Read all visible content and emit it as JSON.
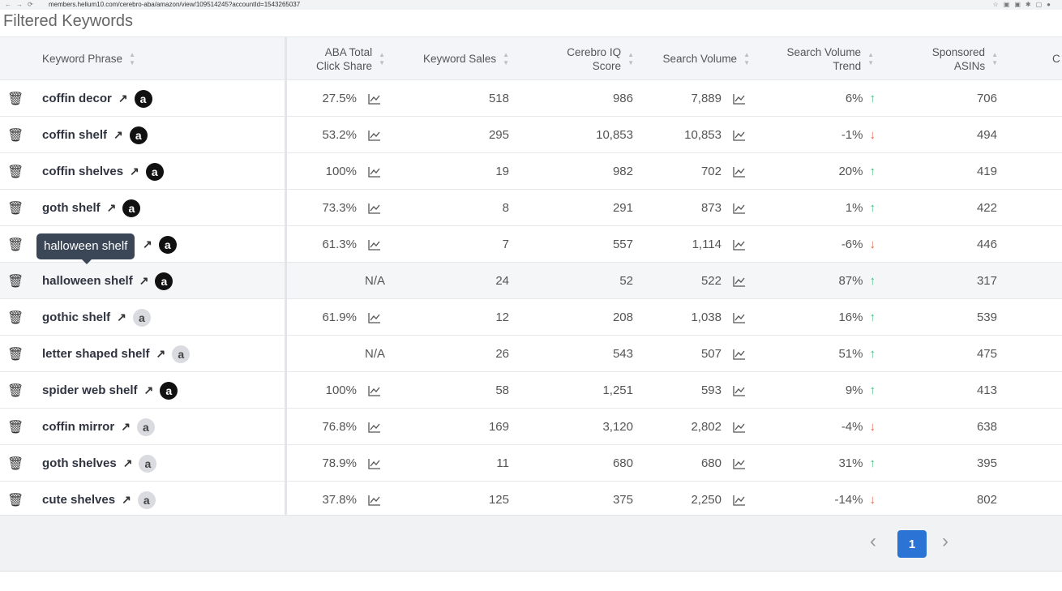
{
  "browser": {
    "url": "members.helium10.com/cerebro-aba/amazon/view/109514245?accountId=1543265037"
  },
  "page_title": "Filtered Keywords",
  "columns": {
    "keyword": "Keyword Phrase",
    "aba1": "ABA Total",
    "aba2": "Click Share",
    "sales": "Keyword Sales",
    "iq1": "Cerebro IQ",
    "iq2": "Score",
    "sv": "Search Volume",
    "svt1": "Search Volume",
    "svt2": "Trend",
    "sp1": "Sponsored",
    "sp2": "ASINs",
    "next": "C"
  },
  "rows": [
    {
      "keyword": "coffin decor",
      "amazon": "dark",
      "aba": "27.5%",
      "sales": "518",
      "iq": "986",
      "sv": "7,889",
      "trend": "6%",
      "dir": "up",
      "asins": "706"
    },
    {
      "keyword": "coffin shelf",
      "amazon": "dark",
      "aba": "53.2%",
      "sales": "295",
      "iq": "10,853",
      "sv": "10,853",
      "trend": "-1%",
      "dir": "down",
      "asins": "494"
    },
    {
      "keyword": "coffin shelves",
      "amazon": "dark",
      "aba": "100%",
      "sales": "19",
      "iq": "982",
      "sv": "702",
      "trend": "20%",
      "dir": "up",
      "asins": "419"
    },
    {
      "keyword": "goth shelf",
      "amazon": "dark",
      "aba": "73.3%",
      "sales": "8",
      "iq": "291",
      "sv": "873",
      "trend": "1%",
      "dir": "up",
      "asins": "422"
    },
    {
      "keyword": "",
      "amazon": "dark",
      "aba": "61.3%",
      "sales": "7",
      "iq": "557",
      "sv": "1,114",
      "trend": "-6%",
      "dir": "down",
      "asins": "446"
    },
    {
      "keyword": "halloween shelf",
      "amazon": "dark",
      "aba": "N/A",
      "sales": "24",
      "iq": "52",
      "sv": "522",
      "trend": "87%",
      "dir": "up",
      "asins": "317"
    },
    {
      "keyword": "gothic shelf",
      "amazon": "light",
      "aba": "61.9%",
      "sales": "12",
      "iq": "208",
      "sv": "1,038",
      "trend": "16%",
      "dir": "up",
      "asins": "539"
    },
    {
      "keyword": "letter shaped shelf",
      "amazon": "light",
      "aba": "N/A",
      "sales": "26",
      "iq": "543",
      "sv": "507",
      "trend": "51%",
      "dir": "up",
      "asins": "475"
    },
    {
      "keyword": "spider web shelf",
      "amazon": "dark",
      "aba": "100%",
      "sales": "58",
      "iq": "1,251",
      "sv": "593",
      "trend": "9%",
      "dir": "up",
      "asins": "413"
    },
    {
      "keyword": "coffin mirror",
      "amazon": "light",
      "aba": "76.8%",
      "sales": "169",
      "iq": "3,120",
      "sv": "2,802",
      "trend": "-4%",
      "dir": "down",
      "asins": "638"
    },
    {
      "keyword": "goth shelves",
      "amazon": "light",
      "aba": "78.9%",
      "sales": "11",
      "iq": "680",
      "sv": "680",
      "trend": "31%",
      "dir": "up",
      "asins": "395"
    },
    {
      "keyword": "cute shelves",
      "amazon": "light",
      "aba": "37.8%",
      "sales": "125",
      "iq": "375",
      "sv": "2,250",
      "trend": "-14%",
      "dir": "down",
      "asins": "802"
    }
  ],
  "tooltip": "halloween shelf",
  "pagination": {
    "current": "1"
  },
  "colors": {
    "up": "#3fbf7f",
    "down": "#e0684b",
    "accent": "#2b74d6"
  }
}
